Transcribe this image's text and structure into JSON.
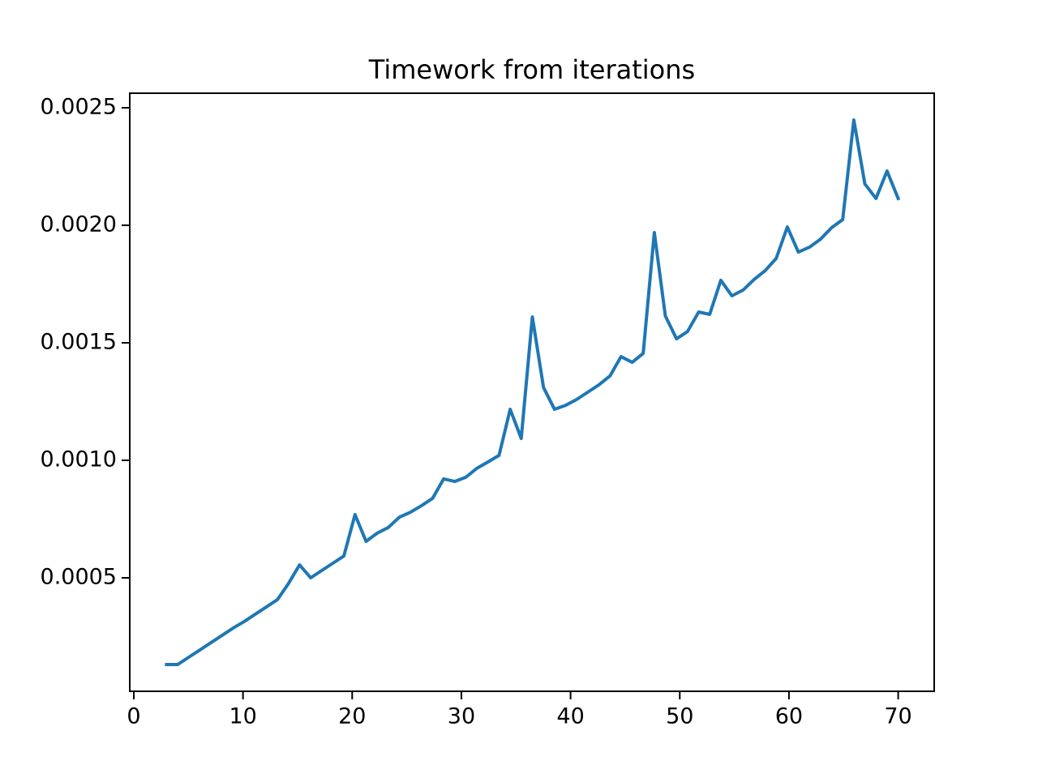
{
  "chart_data": {
    "type": "line",
    "title": "Timework from iterations",
    "x": [
      3,
      4.02,
      5.03,
      6.05,
      7.06,
      8.08,
      9.09,
      10.11,
      11.12,
      12.14,
      13.15,
      14.17,
      15.18,
      16.2,
      17.21,
      18.23,
      19.24,
      20.26,
      21.27,
      22.29,
      23.3,
      24.32,
      25.33,
      26.35,
      27.36,
      28.38,
      29.39,
      30.41,
      31.42,
      32.44,
      33.45,
      34.47,
      35.48,
      36.5,
      37.52,
      38.53,
      39.55,
      40.56,
      41.58,
      42.59,
      43.61,
      44.62,
      45.64,
      46.65,
      47.67,
      48.68,
      49.7,
      50.71,
      51.73,
      52.74,
      53.76,
      54.77,
      55.79,
      56.8,
      57.82,
      58.83,
      59.85,
      60.86,
      61.88,
      62.89,
      63.91,
      64.92,
      65.94,
      66.95,
      67.97,
      68.98,
      70
    ],
    "series": [
      {
        "color": "#1f77b4",
        "values": [
          0.000131,
          0.000131,
          0.000162,
          0.000193,
          0.000224,
          0.000255,
          0.000286,
          0.000314,
          0.000345,
          0.000376,
          0.000407,
          0.000476,
          0.000555,
          0.0005,
          0.000531,
          0.000562,
          0.000593,
          0.000769,
          0.000655,
          0.00069,
          0.000714,
          0.000758,
          0.000779,
          0.000807,
          0.000838,
          0.000921,
          0.00091,
          0.000928,
          0.000966,
          0.000993,
          0.001021,
          0.001217,
          0.001093,
          0.00161,
          0.00131,
          0.001217,
          0.001234,
          0.001259,
          0.00129,
          0.001321,
          0.001359,
          0.001441,
          0.001417,
          0.001455,
          0.001969,
          0.001614,
          0.001517,
          0.001548,
          0.001631,
          0.001621,
          0.001766,
          0.0017,
          0.001724,
          0.001769,
          0.001807,
          0.001859,
          0.001993,
          0.001886,
          0.001907,
          0.001941,
          0.00199,
          0.002024,
          0.002448,
          0.002176,
          0.002114,
          0.002231,
          0.002114
        ]
      }
    ],
    "xlim": [
      -0.37,
      73.3
    ],
    "xticks": [
      0,
      10,
      20,
      30,
      40,
      50,
      60,
      70
    ],
    "ylim": [
      1.72e-05,
      0.002562
    ],
    "yticks": [
      0.0005,
      {
        "value": 0.001,
        "label": "0.0010"
      },
      0.0015,
      {
        "value": 0.002,
        "label": "0.0020"
      },
      0.0025
    ],
    "grid": false
  }
}
